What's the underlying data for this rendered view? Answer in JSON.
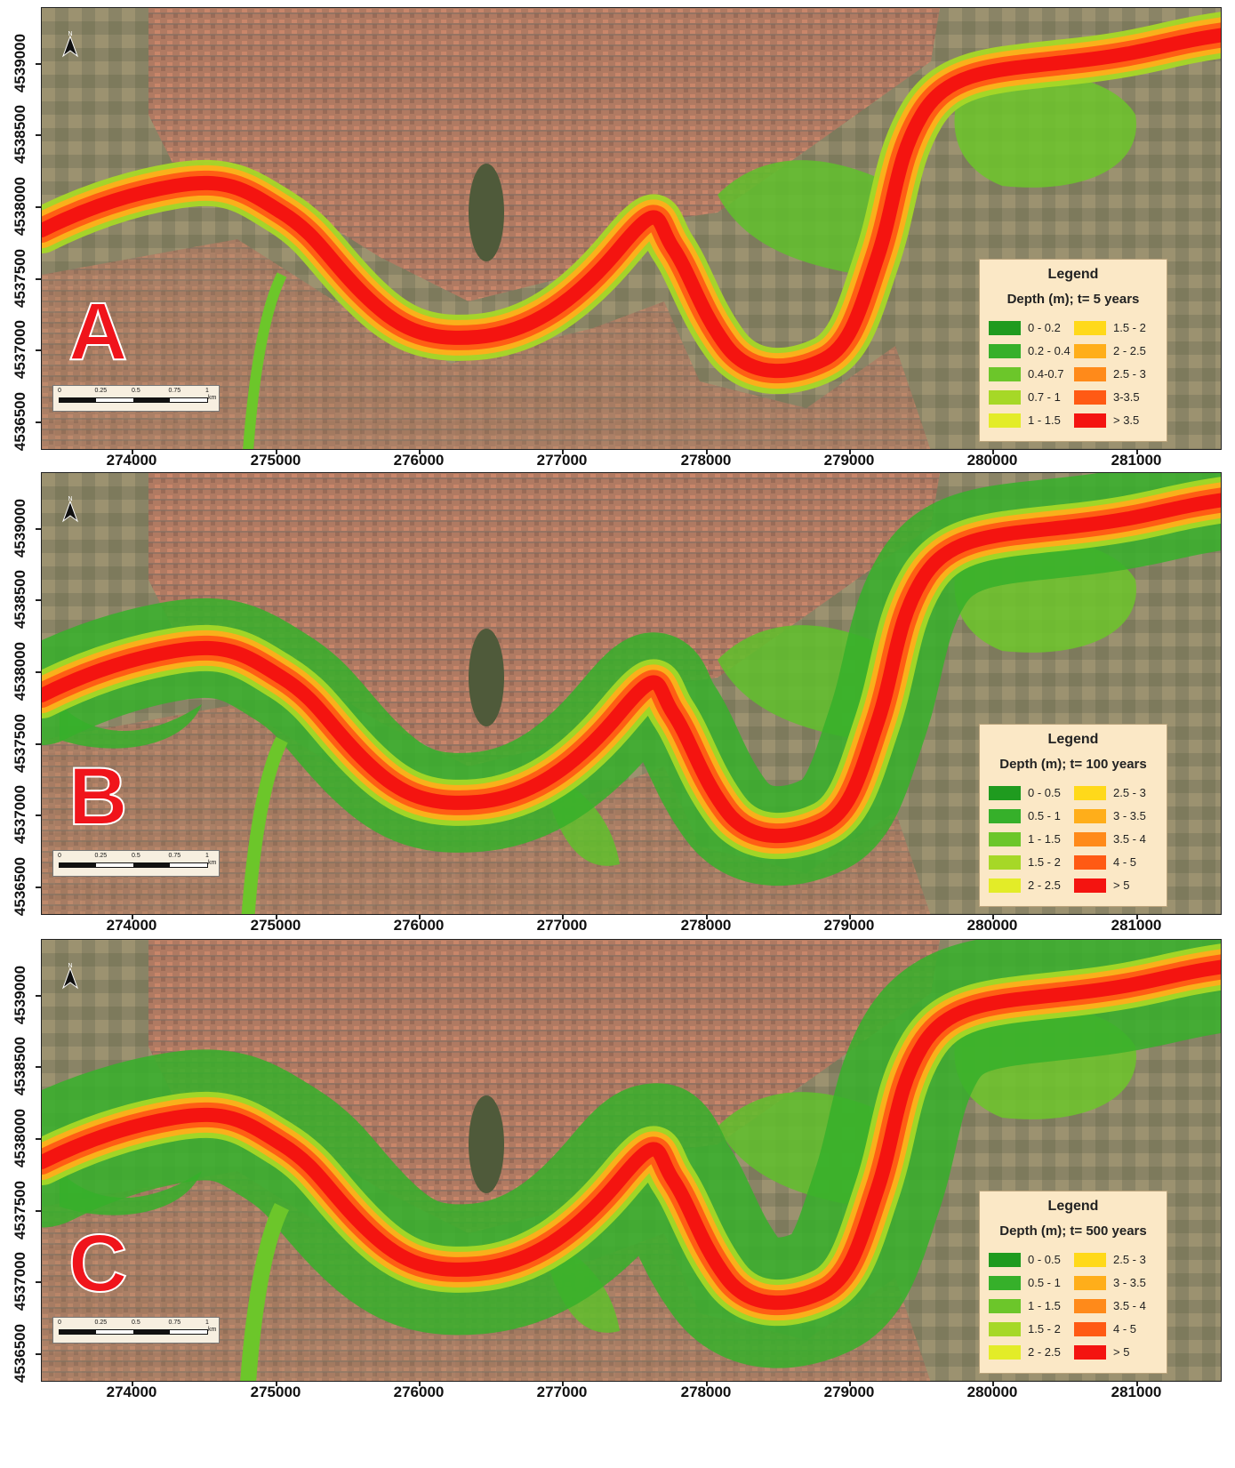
{
  "panels": [
    {
      "letter": "A",
      "legend": {
        "title": "Legend",
        "subtitle": "Depth (m); t= 5 years",
        "left_items": [
          {
            "label": "0 - 0.2",
            "color": "#1f9b1f"
          },
          {
            "label": "0.2 - 0.4",
            "color": "#36b02a"
          },
          {
            "label": "0.4-0.7",
            "color": "#6cc62a"
          },
          {
            "label": "0.7 - 1",
            "color": "#a6d827"
          },
          {
            "label": "1 - 1.5",
            "color": "#e3ec28"
          }
        ],
        "right_items": [
          {
            "label": "1.5 - 2",
            "color": "#ffd91a"
          },
          {
            "label": "2 - 2.5",
            "color": "#ffae1a"
          },
          {
            "label": "2.5 - 3",
            "color": "#ff8a1a"
          },
          {
            "label": "3-3.5",
            "color": "#ff5a14"
          },
          {
            "label": "> 3.5",
            "color": "#f41410"
          }
        ]
      }
    },
    {
      "letter": "B",
      "legend": {
        "title": "Legend",
        "subtitle": "Depth (m); t= 100 years",
        "left_items": [
          {
            "label": "0 - 0.5",
            "color": "#1f9b1f"
          },
          {
            "label": "0.5 - 1",
            "color": "#36b02a"
          },
          {
            "label": "1 - 1.5",
            "color": "#6cc62a"
          },
          {
            "label": "1.5 - 2",
            "color": "#a6d827"
          },
          {
            "label": "2 - 2.5",
            "color": "#e3ec28"
          }
        ],
        "right_items": [
          {
            "label": "2.5 - 3",
            "color": "#ffd91a"
          },
          {
            "label": "3 - 3.5",
            "color": "#ffae1a"
          },
          {
            "label": "3.5 - 4",
            "color": "#ff8a1a"
          },
          {
            "label": "4 - 5",
            "color": "#ff5a14"
          },
          {
            "label": "> 5",
            "color": "#f41410"
          }
        ]
      }
    },
    {
      "letter": "C",
      "legend": {
        "title": "Legend",
        "subtitle": "Depth (m); t= 500 years",
        "left_items": [
          {
            "label": "0 - 0.5",
            "color": "#1f9b1f"
          },
          {
            "label": "0.5 - 1",
            "color": "#36b02a"
          },
          {
            "label": "1 - 1.5",
            "color": "#6cc62a"
          },
          {
            "label": "1.5 - 2",
            "color": "#a6d827"
          },
          {
            "label": "2 - 2.5",
            "color": "#e3ec28"
          }
        ],
        "right_items": [
          {
            "label": "2.5 - 3",
            "color": "#ffd91a"
          },
          {
            "label": "3 - 3.5",
            "color": "#ffae1a"
          },
          {
            "label": "3.5 - 4",
            "color": "#ff8a1a"
          },
          {
            "label": "4 - 5",
            "color": "#ff5a14"
          },
          {
            "label": "> 5",
            "color": "#f41410"
          }
        ]
      }
    }
  ],
  "x_ticks": [
    "274000",
    "275000",
    "276000",
    "277000",
    "278000",
    "279000",
    "280000",
    "281000"
  ],
  "y_ticks": [
    "4536500",
    "4537000",
    "4537500",
    "4538000",
    "4538500",
    "4539000"
  ],
  "scalebar": {
    "labels": [
      "0",
      "0.25",
      "0.5",
      "0.75",
      "1"
    ],
    "unit": "km"
  },
  "north_arrow": {
    "label": "N",
    "icon": "north-arrow-icon"
  },
  "colors": {
    "panel_letter": "#f0141b",
    "legend_bg": "#fbe8c6"
  }
}
